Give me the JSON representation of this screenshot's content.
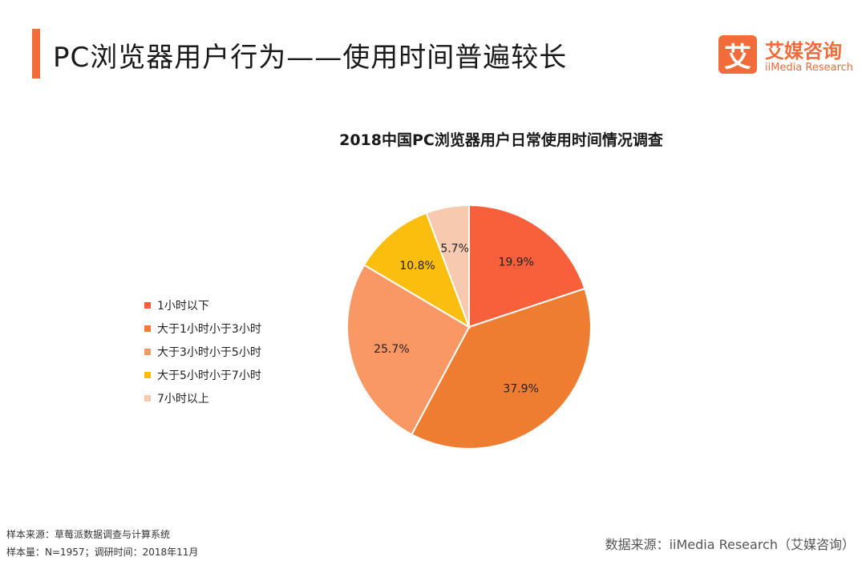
{
  "page": {
    "title": "PC浏览器用户行为——使用时间普遍较长"
  },
  "logo": {
    "mark": "艾",
    "name_cn": "艾媒咨询",
    "name_en": "iiMedia Research"
  },
  "footer": {
    "sample_source": "样本来源：草莓派数据调查与计算系统",
    "sample_info": "样本量：N=1957；调研时间：2018年11月",
    "data_source": "数据来源：iiMedia Research（艾媒咨询）"
  },
  "colors": {
    "accent": "#f26b3a"
  },
  "chart_data": {
    "type": "pie",
    "title": "2018中国PC浏览器用户日常使用时间情况调查",
    "legend_position": "left",
    "categories": [
      "1小时以下",
      "大于1小时小于3小时",
      "大于3小时小于5小时",
      "大于5小时小于7小时",
      "7小时以上"
    ],
    "values": [
      19.9,
      37.9,
      25.7,
      10.8,
      5.7
    ],
    "labels": [
      "19.9%",
      "37.9%",
      "25.7%",
      "10.8%",
      "5.7%"
    ],
    "colors": [
      "#f7603a",
      "#ee7d32",
      "#f99865",
      "#fbbe0e",
      "#f7c9ae"
    ]
  }
}
